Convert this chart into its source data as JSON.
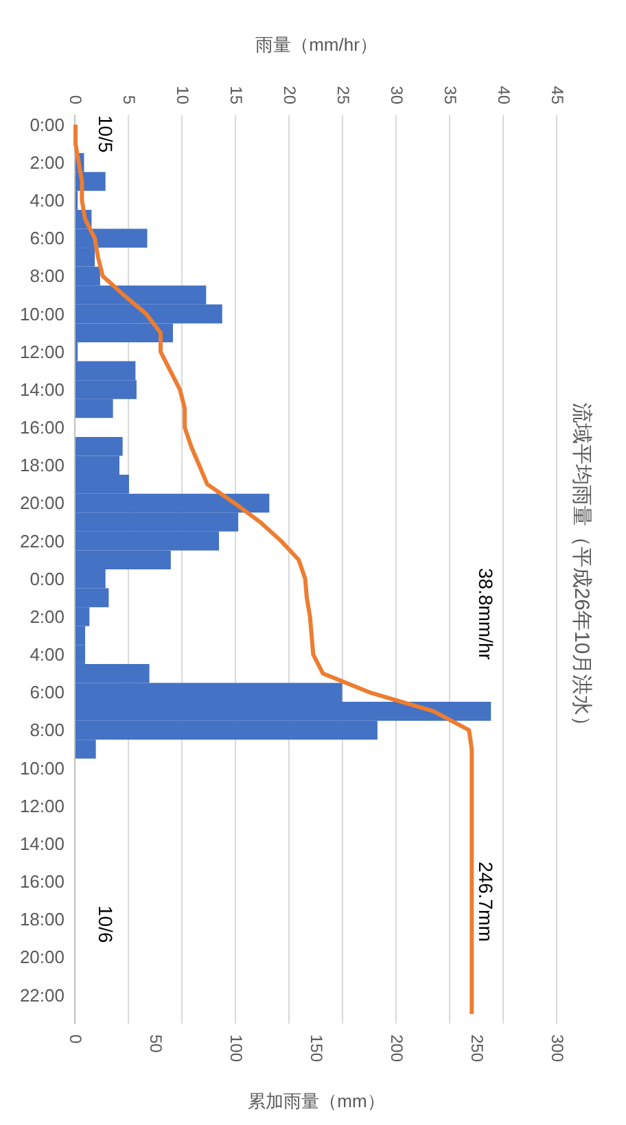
{
  "chart_data": {
    "type": "bar",
    "orientation": "horizontal",
    "title": "流域平均雨量（平成26年10月洪水）",
    "xlabel": "累加雨量（mm）",
    "x2label": "雨量（mm/hr）",
    "categories": [
      "0:00",
      null,
      "2:00",
      null,
      "4:00",
      null,
      "6:00",
      null,
      "8:00",
      null,
      "10:00",
      null,
      "12:00",
      null,
      "14:00",
      null,
      "16:00",
      null,
      "18:00",
      null,
      "20:00",
      null,
      "22:00",
      null,
      "0:00",
      null,
      "2:00",
      null,
      "4:00",
      null,
      "6:00",
      null,
      "8:00",
      null,
      "10:00",
      null,
      "12:00",
      null,
      "14:00",
      null,
      "16:00",
      null,
      "18:00",
      null,
      "20:00",
      null,
      "22:00",
      null
    ],
    "series": [
      {
        "axis": "x2",
        "color": "#4472c4",
        "values": [
          0,
          0,
          0.8,
          2.8,
          0.2,
          1.5,
          6.7,
          1.8,
          2.3,
          12.2,
          13.7,
          9.1,
          0.2,
          5.6,
          5.7,
          3.5,
          0,
          4.4,
          4.1,
          5.0,
          18.1,
          15.2,
          13.4,
          8.9,
          2.8,
          3.1,
          1.3,
          0.9,
          0.9,
          6.9,
          24.9,
          38.8,
          28.2,
          1.9,
          0,
          0,
          0,
          0,
          0,
          0,
          0,
          0,
          0,
          0,
          0,
          0,
          0,
          0
        ]
      },
      {
        "type": "line",
        "color": "#ed7d31",
        "values": [
          0,
          0,
          2,
          4,
          4,
          6,
          12,
          14,
          17,
          30,
          44,
          53,
          53,
          59,
          65,
          68,
          68,
          72,
          77,
          82,
          99,
          115,
          128,
          139,
          143,
          144,
          146,
          147,
          148,
          154,
          183,
          223,
          245,
          246.7,
          246.7,
          246.7,
          246.7,
          246.7,
          246.7,
          246.7,
          246.7,
          246.7,
          246.7,
          246.7,
          246.7,
          246.7,
          246.7,
          246.7
        ]
      }
    ],
    "xlim": [
      0,
      300
    ],
    "xticks": [
      0,
      50,
      100,
      150,
      200,
      250,
      300
    ],
    "x2lim": [
      0,
      45
    ],
    "x2ticks": [
      0,
      5,
      10,
      15,
      20,
      25,
      30,
      35,
      40,
      45
    ],
    "grid": "x",
    "annotations": [
      "10/5",
      "10/6",
      "38.8mm/hr",
      "246.7mm"
    ]
  }
}
